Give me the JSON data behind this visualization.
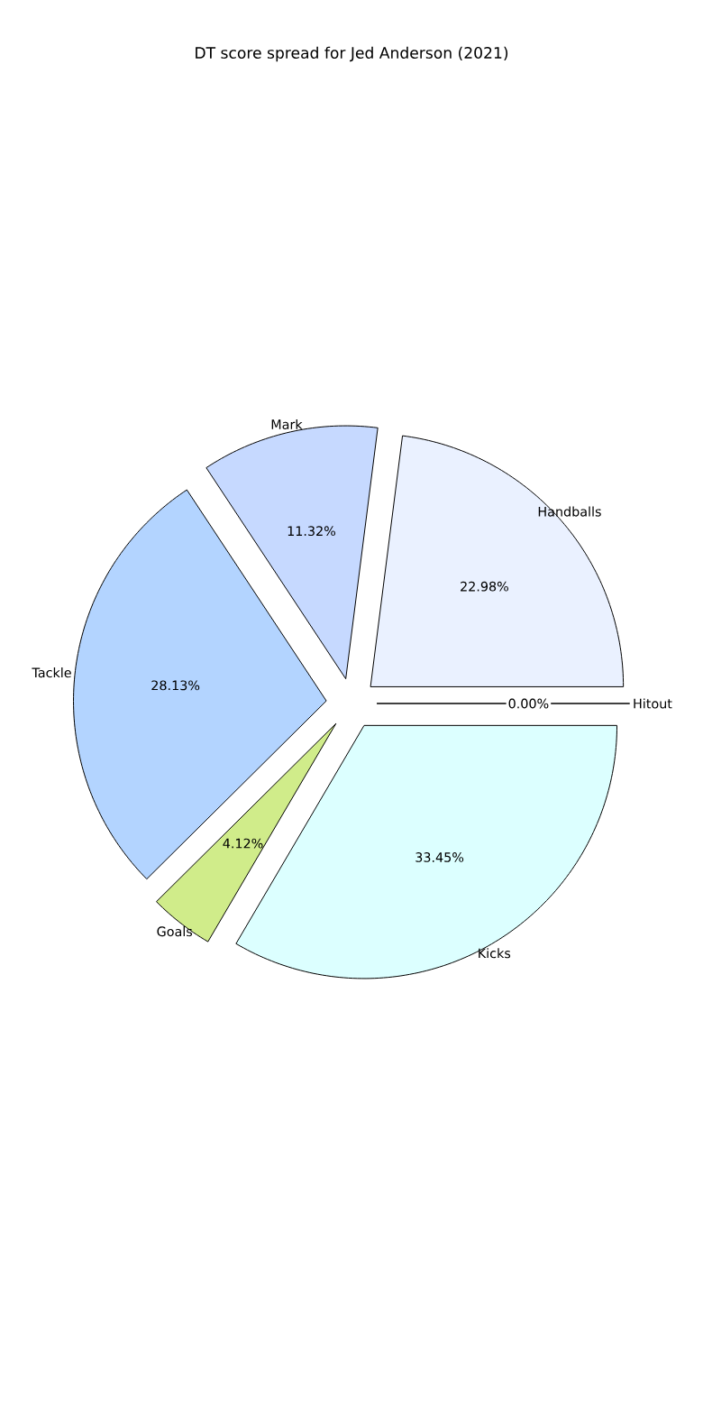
{
  "chart_data": {
    "type": "pie",
    "title": "DT score spread for Jed Anderson (2021)",
    "categories": [
      "Handballs",
      "Mark",
      "Tackle",
      "Goals",
      "Kicks",
      "Hitout"
    ],
    "values": [
      22.98,
      11.32,
      28.13,
      4.12,
      33.45,
      0.0
    ],
    "value_labels": [
      "22.98%",
      "11.32%",
      "28.13%",
      "4.12%",
      "33.45%",
      "0.00%"
    ],
    "colors": [
      "#eaf1ff",
      "#c6d9ff",
      "#b3d4ff",
      "#d0ec8a",
      "#dcffff",
      "#dcdcdc"
    ]
  }
}
